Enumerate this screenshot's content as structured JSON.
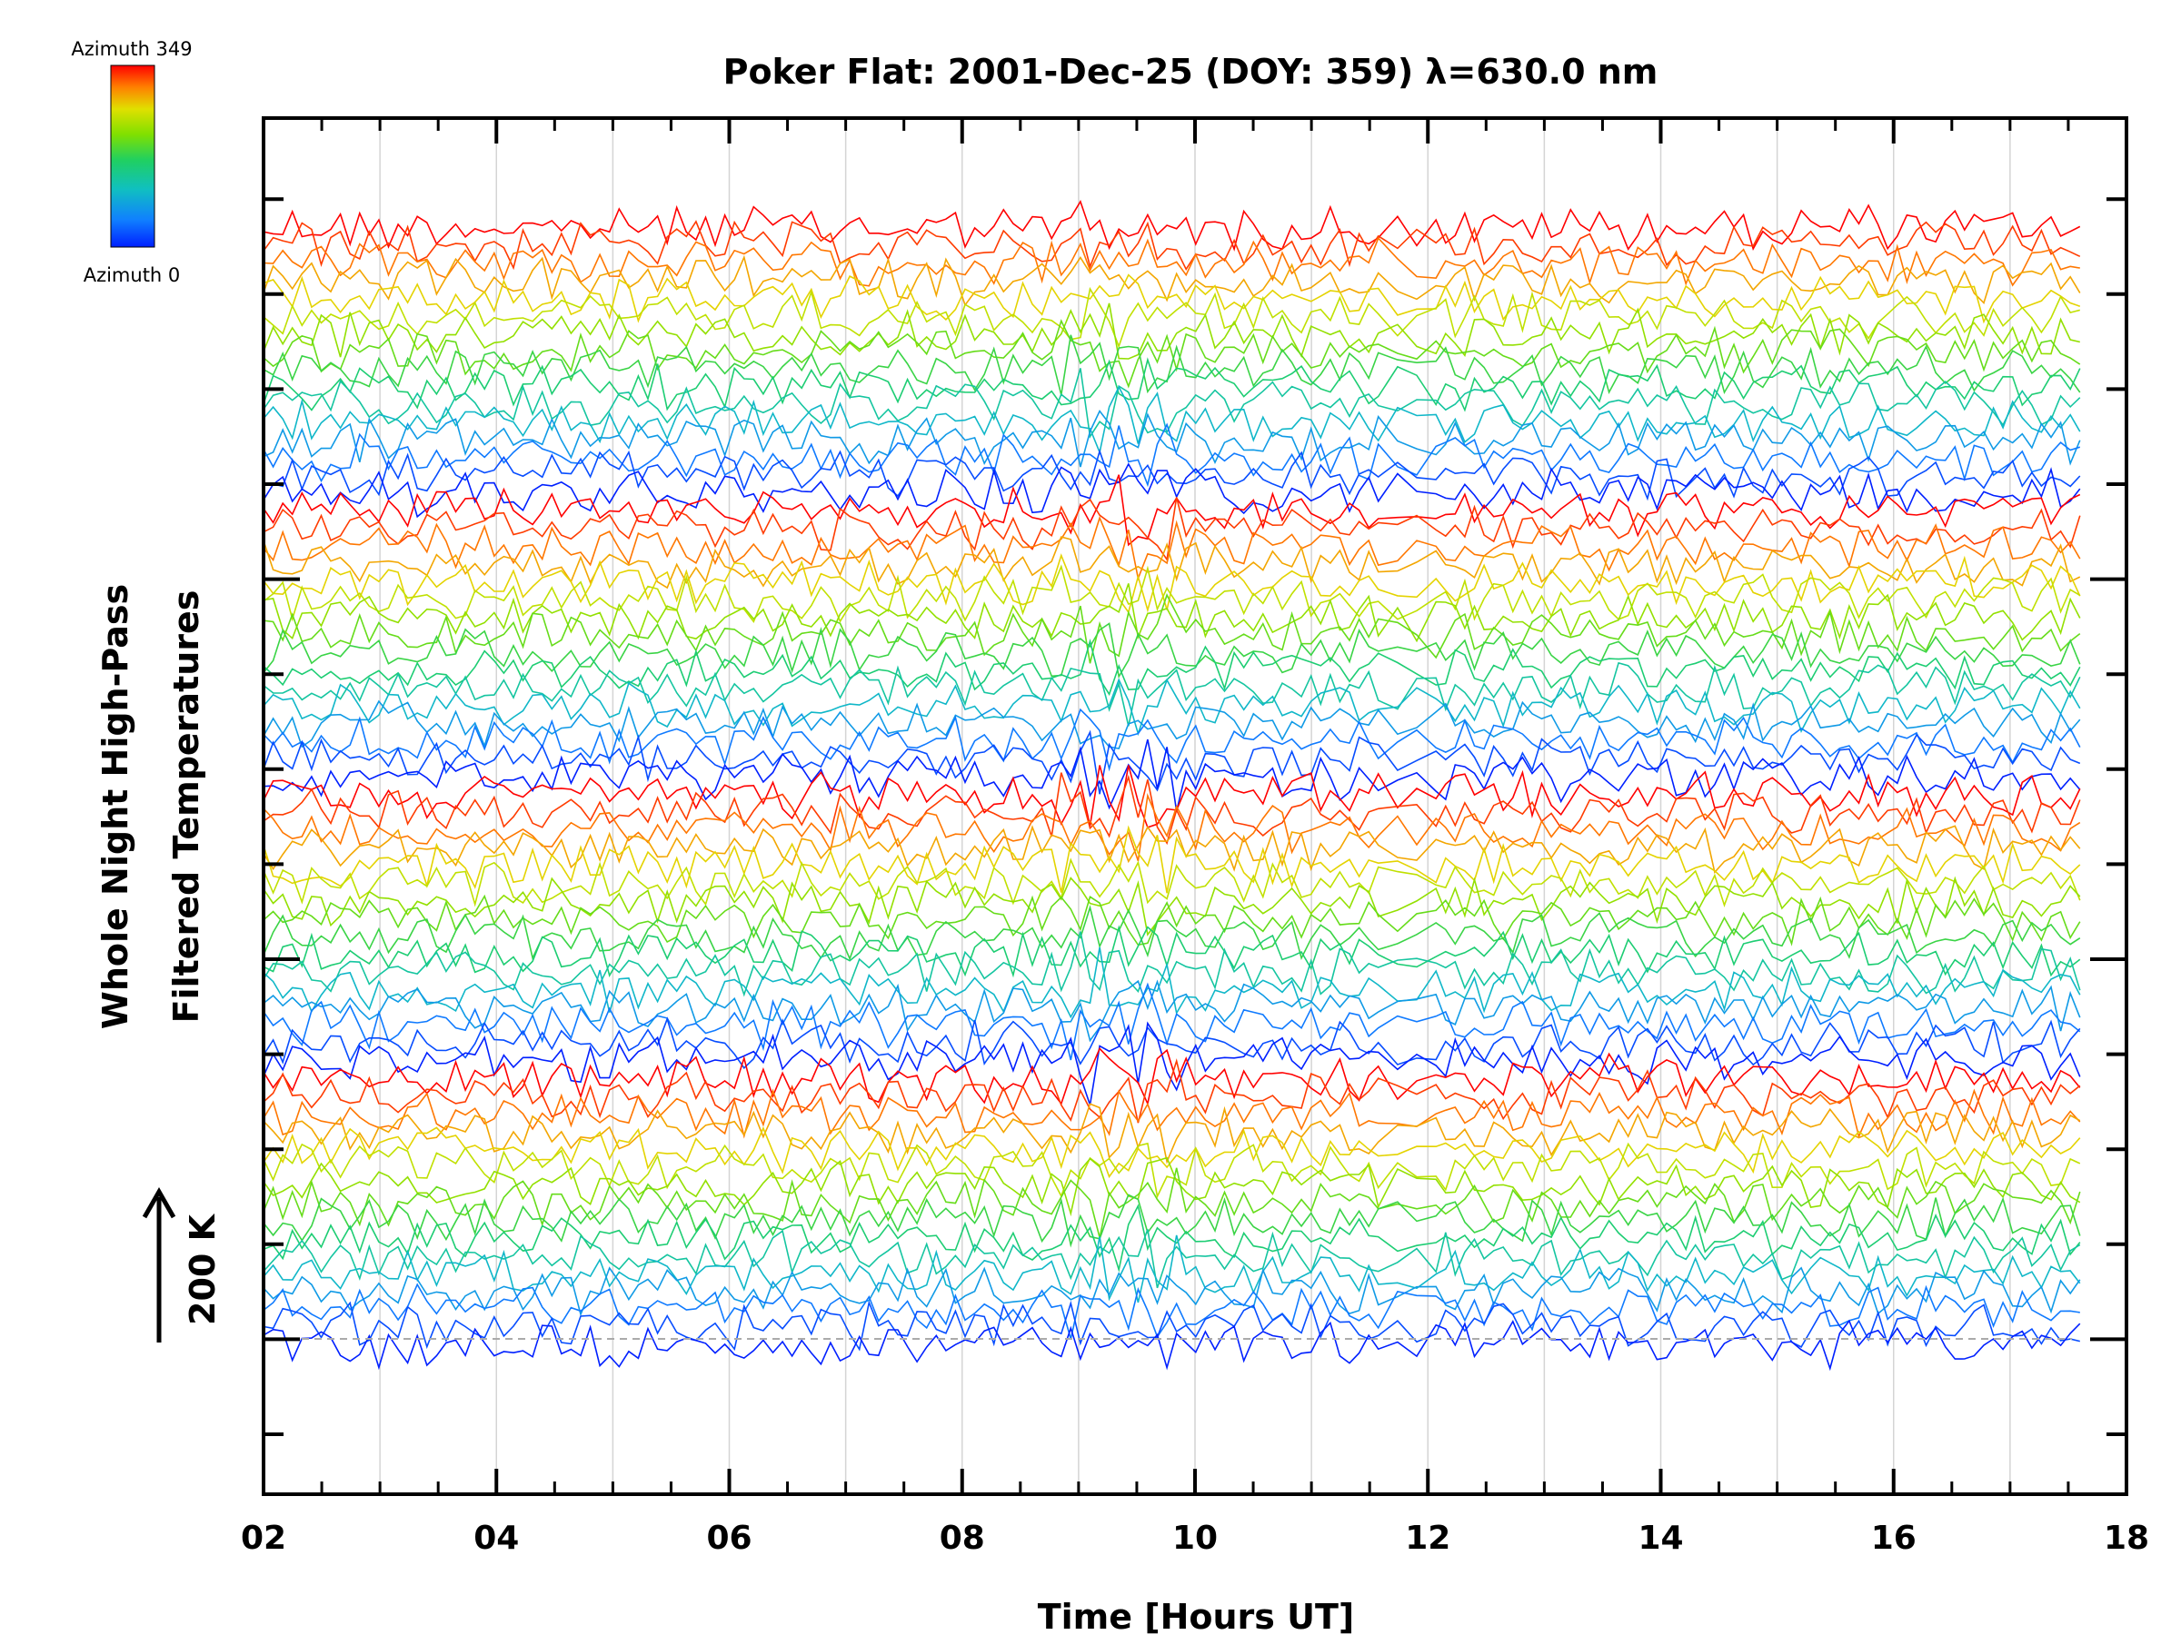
{
  "chart_data": {
    "type": "line",
    "title": "Poker Flat: 2001-Dec-25 (DOY: 359) λ=630.0 nm",
    "xlabel": "Time [Hours UT]",
    "ylabel_line1": "Whole Night High-Pass",
    "ylabel_line2": "Filtered Temperatures",
    "scale_label": "200 K",
    "xlim": [
      2,
      18
    ],
    "xticks": [
      "02",
      "04",
      "06",
      "08",
      "10",
      "12",
      "14",
      "16",
      "18"
    ],
    "x_minor_step": 0.5,
    "data_x_range": [
      2.0,
      17.6
    ],
    "vertical_grid_every_hours": 1,
    "colorbar": {
      "top_label": "Azimuth 349",
      "bottom_label": "Azimuth 0",
      "colors": [
        "#ff0000",
        "#ff8000",
        "#e0e000",
        "#80e000",
        "#20d060",
        "#10c0c0",
        "#1080ff",
        "#0020ff"
      ]
    },
    "series_description": "Stacked high-pass filtered temperature traces, one per sky sector, offset vertically; color encodes azimuth (0 = blue to 349 = red)",
    "band_count": 4,
    "traces_per_band": 16,
    "trace_amplitude_K_approx": 60
  }
}
